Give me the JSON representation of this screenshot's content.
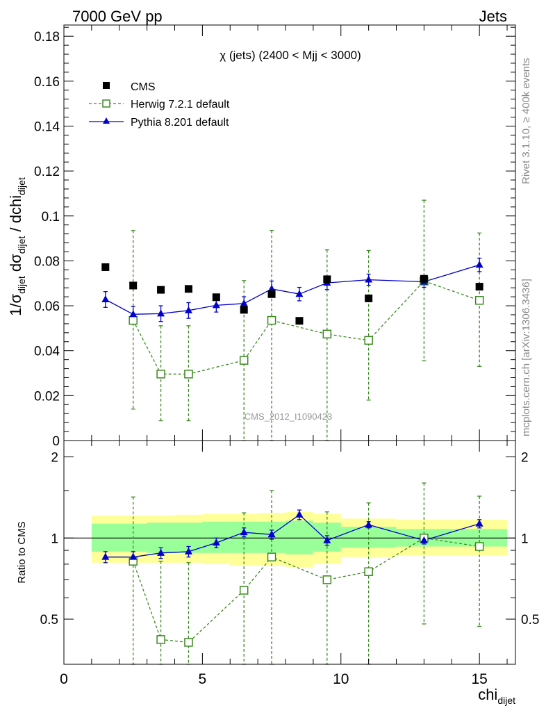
{
  "header": {
    "left": "7000 GeV pp",
    "right": "Jets"
  },
  "side_labels": {
    "rivet": "Rivet 3.1.10, ≥ 400k events",
    "mcplots": "mcplots.cern.ch [arXiv:1306.3436]"
  },
  "watermark": "CMS_2012_I1090423",
  "colors": {
    "data": "#000000",
    "herwig": "#3a8a1e",
    "pythia": "#0000cc",
    "band_inner": "#99ff99",
    "band_outer": "#ffff99"
  },
  "chart_data": [
    {
      "type": "scatter",
      "title": "χ (jets) (2400 < Mjj < 3000)",
      "ylabel": {
        "prefix": "1/σ",
        "sub1": "dijet",
        "mid": " dσ",
        "sub2": "dijet",
        "suffix": " / dchi",
        "sub3": "dijet"
      },
      "xlim": [
        0,
        16.3
      ],
      "ylim": [
        0,
        0.185
      ],
      "y_ticks": [
        {
          "v": 0,
          "label": "0"
        },
        {
          "v": 0.02,
          "label": "0.02"
        },
        {
          "v": 0.04,
          "label": "0.04"
        },
        {
          "v": 0.06,
          "label": "0.06"
        },
        {
          "v": 0.08,
          "label": "0.08"
        },
        {
          "v": 0.1,
          "label": "0.1"
        },
        {
          "v": 0.12,
          "label": "0.12"
        },
        {
          "v": 0.14,
          "label": "0.14"
        },
        {
          "v": 0.16,
          "label": "0.16"
        },
        {
          "v": 0.18,
          "label": "0.18"
        }
      ],
      "series": [
        {
          "name": "CMS",
          "style": "data",
          "x": [
            1.5,
            2.5,
            3.5,
            4.5,
            5.5,
            6.5,
            7.5,
            8.5,
            9.5,
            11,
            13,
            15
          ],
          "y": [
            0.0772,
            0.069,
            0.0671,
            0.0675,
            0.0638,
            0.0582,
            0.0652,
            0.0533,
            0.0718,
            0.0633,
            0.072,
            0.0685
          ]
        },
        {
          "name": "Herwig 7.2.1 default",
          "style": "herwig",
          "x": [
            2.5,
            3.5,
            4.5,
            6.5,
            7.5,
            9.5,
            11,
            13,
            15
          ],
          "y": [
            0.0535,
            0.0296,
            0.0296,
            0.0357,
            0.0535,
            0.0474,
            0.0446,
            0.071,
            0.0624
          ],
          "err_low": [
            0.0395,
            0.0208,
            0.0208,
            0.0357,
            0.0535,
            0.0474,
            0.0266,
            0.0355,
            0.0294
          ],
          "err_high": [
            0.04,
            0.0215,
            0.0215,
            0.0355,
            0.04,
            0.0375,
            0.04,
            0.036,
            0.03
          ]
        },
        {
          "name": "Pythia 8.201 default",
          "style": "pythia",
          "x": [
            1.5,
            2.5,
            3.5,
            4.5,
            5.5,
            6.5,
            7.5,
            8.5,
            9.5,
            11,
            13,
            15
          ],
          "y": [
            0.0628,
            0.0562,
            0.0565,
            0.0579,
            0.0602,
            0.061,
            0.0675,
            0.0652,
            0.0702,
            0.0716,
            0.0707,
            0.0782
          ],
          "err_low": [
            0.0035,
            0.0035,
            0.0035,
            0.0035,
            0.003,
            0.003,
            0.0035,
            0.003,
            0.003,
            0.0025,
            0.0025,
            0.003
          ],
          "err_high": [
            0.0035,
            0.0035,
            0.0035,
            0.0035,
            0.003,
            0.003,
            0.0035,
            0.003,
            0.003,
            0.0025,
            0.0025,
            0.003
          ]
        }
      ]
    },
    {
      "type": "line",
      "ylabel": "Ratio to CMS",
      "xlabel": {
        "main": "chi",
        "sub": "dijet"
      },
      "xlim": [
        0,
        16.3
      ],
      "ylim": [
        0.34,
        2.3
      ],
      "x_ticks": [
        {
          "v": 0,
          "label": "0"
        },
        {
          "v": 5,
          "label": "5"
        },
        {
          "v": 10,
          "label": "10"
        },
        {
          "v": 15,
          "label": "15"
        }
      ],
      "y_ticks": [
        {
          "v": 0.5,
          "label": "0.5"
        },
        {
          "v": 1,
          "label": "1"
        },
        {
          "v": 2,
          "label": "2"
        }
      ],
      "reference_line": 1,
      "bands": {
        "bins": [
          [
            1,
            2
          ],
          [
            2,
            3
          ],
          [
            3,
            4
          ],
          [
            4,
            5
          ],
          [
            5,
            6
          ],
          [
            6,
            7
          ],
          [
            7,
            8
          ],
          [
            8,
            9
          ],
          [
            9,
            10
          ],
          [
            10,
            12
          ],
          [
            12,
            14
          ],
          [
            14,
            16
          ]
        ],
        "inner_low": [
          0.89,
          0.89,
          0.88,
          0.88,
          0.88,
          0.88,
          0.88,
          0.87,
          0.89,
          0.92,
          0.93,
          0.93
        ],
        "inner_high": [
          1.13,
          1.13,
          1.14,
          1.14,
          1.15,
          1.15,
          1.15,
          1.16,
          1.14,
          1.1,
          1.08,
          1.08
        ],
        "outer_low": [
          0.81,
          0.81,
          0.81,
          0.81,
          0.8,
          0.79,
          0.79,
          0.78,
          0.8,
          0.85,
          0.86,
          0.86
        ],
        "outer_high": [
          1.21,
          1.21,
          1.21,
          1.22,
          1.23,
          1.23,
          1.24,
          1.25,
          1.23,
          1.18,
          1.17,
          1.17
        ]
      },
      "series": [
        {
          "name": "Herwig 7.2.1 default",
          "style": "herwig",
          "x": [
            2.5,
            3.5,
            4.5,
            6.5,
            7.5,
            9.5,
            11,
            13,
            15
          ],
          "y": [
            0.82,
            0.42,
            0.41,
            0.64,
            0.85,
            0.7,
            0.75,
            1.0,
            0.93
          ],
          "err_low": [
            0.82,
            0.42,
            0.41,
            0.64,
            0.85,
            0.7,
            0.75,
            0.52,
            0.46
          ],
          "err_high": [
            0.6,
            0.4,
            0.4,
            0.6,
            0.65,
            0.55,
            0.6,
            0.6,
            0.5
          ]
        },
        {
          "name": "Pythia 8.201 default",
          "style": "pythia",
          "x": [
            1.5,
            2.5,
            3.5,
            4.5,
            5.5,
            6.5,
            7.5,
            8.5,
            9.5,
            11,
            13,
            15
          ],
          "y": [
            0.85,
            0.85,
            0.88,
            0.89,
            0.96,
            1.05,
            1.03,
            1.22,
            0.98,
            1.12,
            0.98,
            1.13
          ],
          "err_low": [
            0.04,
            0.04,
            0.04,
            0.04,
            0.04,
            0.04,
            0.04,
            0.05,
            0.04,
            0.03,
            0.03,
            0.04
          ],
          "err_high": [
            0.04,
            0.04,
            0.04,
            0.04,
            0.04,
            0.04,
            0.04,
            0.05,
            0.04,
            0.03,
            0.03,
            0.04
          ]
        }
      ]
    }
  ]
}
